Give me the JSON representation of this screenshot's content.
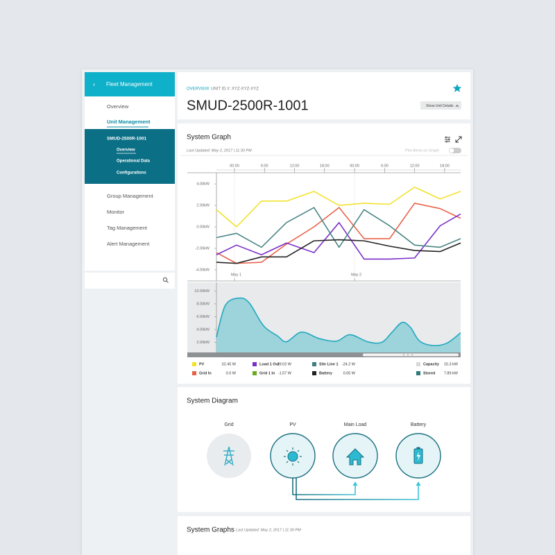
{
  "sidebar": {
    "header": "Fleet Management",
    "items": [
      "Overview",
      "Unit Management"
    ],
    "unit": {
      "name": "SMUD-2500R-1001",
      "items": [
        "Overview",
        "Operational Data",
        "Configurations"
      ]
    },
    "more_items": [
      "Group Management",
      "Monitor",
      "Tag Management",
      "Alert Management"
    ]
  },
  "header": {
    "breadcrumb": "OVERVIEW",
    "unit_id": "UNIT ID #: XYZ-XYZ-XYZ",
    "title": "SMUD-2500R-1001",
    "button": "Show Unit Details"
  },
  "system_graph": {
    "title": "System Graph",
    "updated": "Last Updated: May 2, 2017 | 11:30 PM",
    "toggle": "Plot Alerts on Graph",
    "legend": [
      {
        "name": "PV",
        "color": "#f2e12b",
        "reading": "32.45 W"
      },
      {
        "name": "Grid In",
        "color": "#e8624a",
        "reading": "0.0 W"
      },
      {
        "name": "Load 1 Out",
        "color": "#7a2fc7",
        "reading": "29.02 W"
      },
      {
        "name": "Grid 1 In",
        "color": "#6aaa1e",
        "reading": "-1.57 W"
      },
      {
        "name": "Site Line 1",
        "color": "#3f7e80",
        "reading": "-24.2 W"
      },
      {
        "name": "Battery",
        "color": "#222222",
        "reading": "0.05 W"
      },
      {
        "name": "Capacity",
        "color": "#d9d9d9",
        "reading": "15.3 kW"
      },
      {
        "name": "Stored",
        "color": "#2e7b7b",
        "reading": "7.89 kW"
      }
    ]
  },
  "chart_data": [
    {
      "type": "line",
      "x": [
        -3.6,
        0.4,
        5.4,
        10.4,
        15.9,
        20.9,
        25.9,
        31,
        36,
        41.1,
        45.2
      ],
      "xlim": [
        -3.6,
        45.2
      ],
      "xticks": [
        {
          "value": 0,
          "label": "00:00"
        },
        {
          "value": 6,
          "label": "6:00"
        },
        {
          "value": 12,
          "label": "12:00"
        },
        {
          "value": 18,
          "label": "18:00"
        },
        {
          "value": 24,
          "label": "00:00"
        },
        {
          "value": 30,
          "label": "6:00"
        },
        {
          "value": 36,
          "label": "12:00"
        },
        {
          "value": 42,
          "label": "18:00"
        }
      ],
      "date_ticks": [
        {
          "value": 0,
          "label": "May 1"
        },
        {
          "value": 24,
          "label": "May 2"
        }
      ],
      "ylim": [
        -5.04,
        5.04
      ],
      "yticks": [
        {
          "value": 4,
          "label": "4.00kW"
        },
        {
          "value": 2,
          "label": "2.00kW"
        },
        {
          "value": 0,
          "label": "0.00kW"
        },
        {
          "value": -2,
          "label": "-2.00kW"
        },
        {
          "value": -4,
          "label": "-4.00kW"
        }
      ],
      "series": [
        {
          "color": "#f2e12b",
          "values": [
            1.6,
            0,
            2.4,
            2.4,
            3.3,
            2.0,
            2.2,
            2.1,
            3.7,
            2.6,
            3.3
          ]
        },
        {
          "color": "#e8624a",
          "values": [
            -2.4,
            -3.4,
            -3.3,
            -1.6,
            0,
            1.8,
            -1.1,
            -1.1,
            2.2,
            1.7,
            0.8
          ]
        },
        {
          "color": "#7a2fc7",
          "values": [
            -2.6,
            -1.7,
            -2.6,
            -1.5,
            -2.4,
            0.4,
            -3.0,
            -3.0,
            -2.9,
            0.1,
            1.2
          ]
        },
        {
          "color": "#4a8584",
          "values": [
            -1.0,
            -0.6,
            -1.9,
            0.4,
            1.8,
            -1.9,
            1.6,
            0.1,
            -1.7,
            -1.9,
            -1.1
          ]
        },
        {
          "color": "#222222",
          "values": [
            -3.3,
            -3.4,
            -2.8,
            -2.8,
            -1.3,
            -1.2,
            -1.3,
            -1.8,
            -2.2,
            -2.3,
            -1.5
          ]
        }
      ]
    },
    {
      "type": "area",
      "x": [
        -3.6,
        -1.8,
        1.0,
        3.0,
        5.8,
        8.6,
        10.4,
        13.4,
        16.9,
        20.4,
        23.1,
        26.6,
        29.4,
        31.4,
        33.5,
        35.2,
        37.0,
        39.8,
        42.5,
        45.2
      ],
      "xlim": [
        -3.6,
        45.2
      ],
      "ylim": [
        0,
        11.35
      ],
      "yticks": [
        {
          "value": 10,
          "label": "10.00kW"
        },
        {
          "value": 8,
          "label": "8.00kW"
        },
        {
          "value": 6,
          "label": "6.00kW"
        },
        {
          "value": 4,
          "label": "4.00kW"
        },
        {
          "value": 2,
          "label": "2.00kW"
        }
      ],
      "series": [
        {
          "color": "#22a9c0",
          "fill": "#9dd3da",
          "values": [
            2.8,
            7.8,
            8.9,
            8.1,
            4.6,
            3.0,
            2.1,
            3.6,
            2.6,
            2.2,
            3.2,
            2.1,
            2.0,
            3.5,
            5.1,
            4.3,
            2.2,
            1.5,
            1.9,
            3.5
          ]
        }
      ]
    }
  ],
  "system_diagram": {
    "title": "System Diagram",
    "nodes": [
      {
        "label": "Grid"
      },
      {
        "label": "PV"
      },
      {
        "label": "Main Load"
      },
      {
        "label": "Battery"
      }
    ]
  },
  "system_graphs": {
    "title": "System Graphs",
    "updated": "Last Updated: May 2, 2017 | 11:30 PM"
  }
}
